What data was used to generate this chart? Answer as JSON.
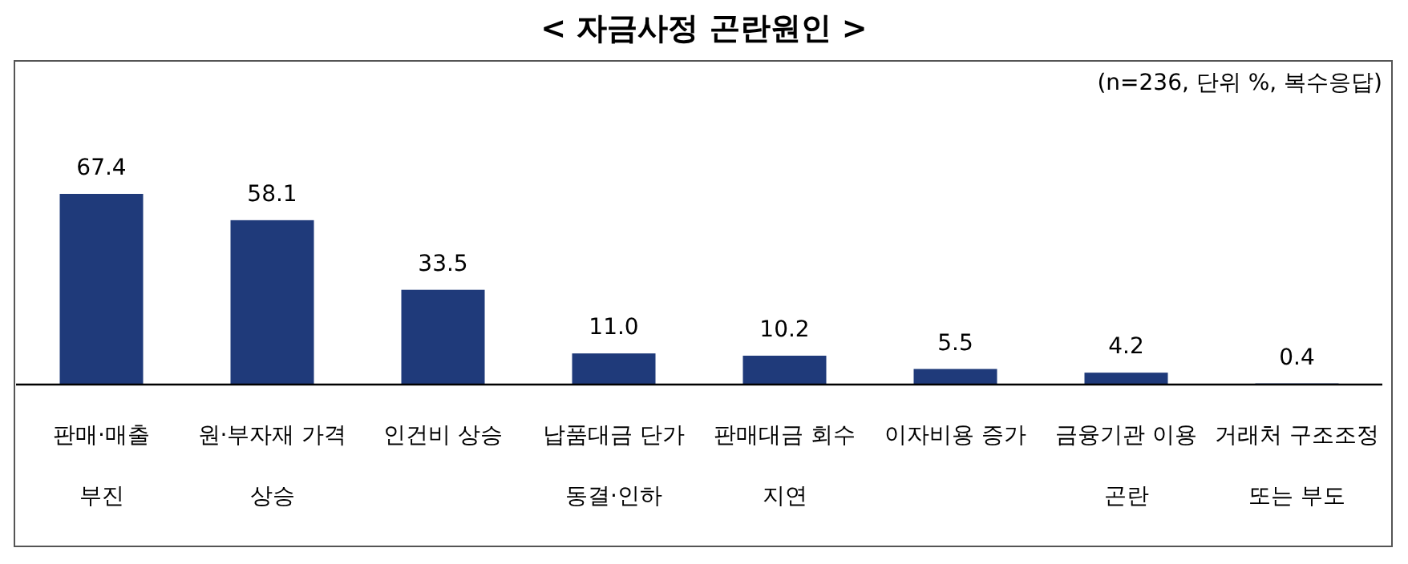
{
  "chart_data": {
    "type": "bar",
    "title": "< 자금사정 곤란원인 >",
    "subtitle": "(n=236, 단위 %, 복수응답)",
    "categories": [
      "판매·매출\n부진",
      "원·부자재 가격\n상승",
      "인건비 상승",
      "납품대금 단가\n동결·인하",
      "판매대금 회수\n지연",
      "이자비용 증가",
      "금융기관 이용\n곤란",
      "거래처 구조조정\n또는 부도"
    ],
    "values": [
      67.4,
      58.1,
      33.5,
      11.0,
      10.2,
      5.5,
      4.2,
      0.4
    ],
    "value_labels": [
      "67.4",
      "58.1",
      "33.5",
      "11.0",
      "10.2",
      "5.5",
      "4.2",
      "0.4"
    ],
    "color": "#1f3a7a"
  }
}
